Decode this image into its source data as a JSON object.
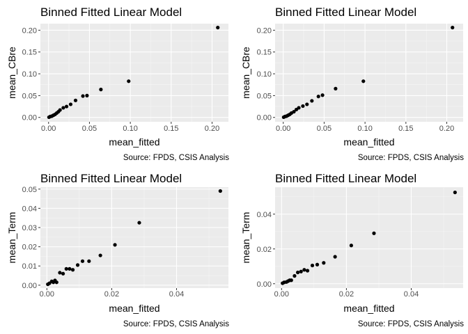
{
  "colors": {
    "panel_background": "#ebebeb",
    "grid": "#ffffff",
    "point": "#000000",
    "tick_label": "#4d4d4d"
  },
  "chart_data": [
    {
      "type": "scatter",
      "title": "Binned Fitted Linear Model",
      "xlabel": "mean_fitted",
      "ylabel": "mean_CBre",
      "caption": "Source: FPDS, CSIS Analysis",
      "xlim": [
        -0.01,
        0.22
      ],
      "ylim": [
        -0.01,
        0.215
      ],
      "xticks": [
        0.0,
        0.05,
        0.1,
        0.15,
        0.2
      ],
      "xtick_labels": [
        "0.00",
        "0.05",
        "0.10",
        "0.15",
        "0.20"
      ],
      "yticks": [
        0.0,
        0.05,
        0.1,
        0.15,
        0.2
      ],
      "ytick_labels": [
        "0.00",
        "0.05",
        "0.10",
        "0.15",
        "0.20"
      ],
      "grid": true,
      "points": {
        "x": [
          0.0005,
          0.002,
          0.004,
          0.006,
          0.008,
          0.01,
          0.012,
          0.014,
          0.018,
          0.022,
          0.027,
          0.033,
          0.042,
          0.047,
          0.064,
          0.098,
          0.207
        ],
        "y": [
          0.0005,
          0.002,
          0.003,
          0.005,
          0.007,
          0.01,
          0.013,
          0.017,
          0.022,
          0.025,
          0.03,
          0.039,
          0.049,
          0.05,
          0.064,
          0.083,
          0.206
        ]
      }
    },
    {
      "type": "scatter",
      "title": "Binned Fitted Linear Model",
      "xlabel": "mean_fitted",
      "ylabel": "mean_CBre",
      "caption": "Source: FPDS, CSIS Analysis",
      "xlim": [
        -0.01,
        0.22
      ],
      "ylim": [
        -0.01,
        0.215
      ],
      "xticks": [
        0.0,
        0.05,
        0.1,
        0.15,
        0.2
      ],
      "xtick_labels": [
        "0.00",
        "0.05",
        "0.10",
        "0.15",
        "0.20"
      ],
      "yticks": [
        0.0,
        0.05,
        0.1,
        0.15,
        0.2
      ],
      "ytick_labels": [
        "0.00",
        "0.05",
        "0.10",
        "0.15",
        "0.20"
      ],
      "grid": true,
      "points": {
        "x": [
          0.0005,
          0.002,
          0.004,
          0.006,
          0.008,
          0.01,
          0.013,
          0.016,
          0.019,
          0.024,
          0.029,
          0.035,
          0.043,
          0.048,
          0.064,
          0.098,
          0.207
        ],
        "y": [
          0.0005,
          0.002,
          0.003,
          0.005,
          0.007,
          0.01,
          0.013,
          0.018,
          0.022,
          0.026,
          0.03,
          0.038,
          0.048,
          0.051,
          0.066,
          0.083,
          0.206
        ]
      }
    },
    {
      "type": "scatter",
      "title": "Binned Fitted Linear Model",
      "xlabel": "mean_fitted",
      "ylabel": "mean_Term",
      "caption": "Source: FPDS, CSIS Analysis",
      "xlim": [
        -0.002,
        0.056
      ],
      "ylim": [
        -0.0015,
        0.051
      ],
      "xticks": [
        0.0,
        0.02,
        0.04
      ],
      "xtick_labels": [
        "0.00",
        "0.02",
        "0.04"
      ],
      "yticks": [
        0.0,
        0.01,
        0.02,
        0.03,
        0.04,
        0.05
      ],
      "ytick_labels": [
        "0.00",
        "0.01",
        "0.02",
        "0.03",
        "0.04",
        "0.05"
      ],
      "grid": true,
      "points": {
        "x": [
          0.0003,
          0.0008,
          0.0015,
          0.002,
          0.0025,
          0.003,
          0.004,
          0.005,
          0.006,
          0.007,
          0.008,
          0.0095,
          0.011,
          0.013,
          0.0165,
          0.021,
          0.0285,
          0.0535
        ],
        "y": [
          0.0005,
          0.001,
          0.002,
          0.0015,
          0.0025,
          0.0015,
          0.0065,
          0.006,
          0.0085,
          0.0085,
          0.008,
          0.0105,
          0.0125,
          0.0125,
          0.0155,
          0.021,
          0.0325,
          0.049
        ]
      }
    },
    {
      "type": "scatter",
      "title": "Binned Fitted Linear Model",
      "xlabel": "mean_fitted",
      "ylabel": "mean_Term",
      "caption": "Source: FPDS, CSIS Analysis",
      "xlim": [
        -0.002,
        0.056
      ],
      "ylim": [
        -0.0025,
        0.0555
      ],
      "xticks": [
        0.0,
        0.02,
        0.04
      ],
      "xtick_labels": [
        "0.00",
        "0.02",
        "0.04"
      ],
      "yticks": [
        0.0,
        0.02,
        0.04
      ],
      "ytick_labels": [
        "0.00",
        "0.02",
        "0.04"
      ],
      "grid": true,
      "points": {
        "x": [
          0.0003,
          0.0008,
          0.0015,
          0.002,
          0.0025,
          0.003,
          0.004,
          0.005,
          0.006,
          0.007,
          0.008,
          0.0095,
          0.011,
          0.013,
          0.0165,
          0.0215,
          0.0285,
          0.0535
        ],
        "y": [
          0.0003,
          0.0008,
          0.001,
          0.0015,
          0.002,
          0.002,
          0.0045,
          0.0065,
          0.007,
          0.008,
          0.0075,
          0.0105,
          0.011,
          0.012,
          0.0155,
          0.022,
          0.029,
          0.0525
        ]
      }
    }
  ]
}
